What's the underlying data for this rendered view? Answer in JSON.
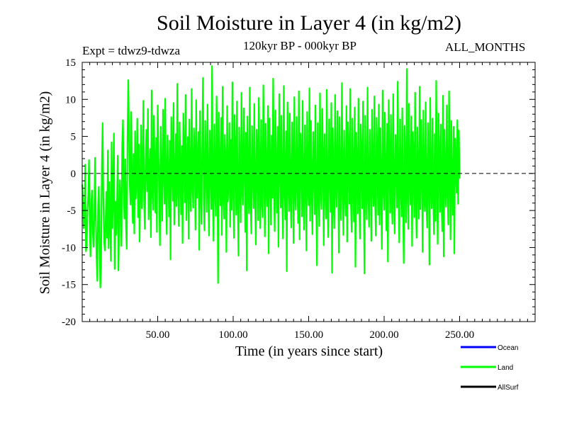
{
  "chart_data": {
    "type": "line",
    "title": "Soil Moisture in Layer 4 (in kg/m2)",
    "subtitle_left": "Expt = tdwz9-tdwza",
    "subtitle_center": "120kyr BP - 000kyr BP",
    "subtitle_right": "ALL_MONTHS",
    "xlabel": "Time (in years since start)",
    "ylabel": "Soil Moisture in Layer 4 (in kg/m2)",
    "xlim": [
      0,
      300
    ],
    "ylim": [
      -20,
      15
    ],
    "x_ticks": [
      50,
      100,
      150,
      200,
      250
    ],
    "x_tick_labels": [
      "50.00",
      "100.00",
      "150.00",
      "200.00",
      "250.00"
    ],
    "y_ticks": [
      -20,
      -15,
      -10,
      -5,
      0,
      5,
      10,
      15
    ],
    "y_tick_labels": [
      "-20",
      "-15",
      "-10",
      "-5",
      "0",
      "5",
      "10",
      "15"
    ],
    "zero_line": "dashed",
    "legend_position": "bottom-right",
    "legend": [
      {
        "name": "Ocean",
        "color": "#0000ff"
      },
      {
        "name": "Land",
        "color": "#00ff00"
      },
      {
        "name": "AllSurf",
        "color": "#000000"
      }
    ],
    "series": [
      {
        "name": "Land",
        "color": "#00ff00",
        "x_start": 0,
        "x_step": 0.5,
        "values": [
          -1.5,
          -3.2,
          -7.4,
          -5.9,
          1.2,
          -10.5,
          -9.6,
          -4.8,
          -3.1,
          1.8,
          -7.8,
          -11.2,
          -4.1,
          -2.3,
          -7.8,
          -9.9,
          -6.4,
          2.1,
          -5.6,
          -11.3,
          -14.5,
          -4.3,
          -1.8,
          -8.9,
          -15.4,
          -12.6,
          0.6,
          6.8,
          -3.2,
          -9.1,
          -10.4,
          -6.9,
          -2.5,
          -8.7,
          3.1,
          -10.1,
          -1.2,
          -6.3,
          -11.8,
          4.2,
          -7.4,
          -2.1,
          5.4,
          -12.9,
          -3.8,
          -8.3,
          -5.2,
          2.4,
          -13.1,
          -6.6,
          -0.9,
          -4.5,
          -9.8,
          3.6,
          7.2,
          -2.8,
          -6.1,
          1.9,
          -7.3,
          -10.2,
          4.6,
          12.6,
          6.1,
          -1.5,
          -4.2,
          8.3,
          -2.9,
          -6.7,
          2.6,
          -8.1,
          5.7,
          -3.4,
          -0.8,
          7.4,
          -5.9,
          3.9,
          -9.2,
          -2.3,
          6.5,
          -4.7,
          -1.1,
          9.8,
          -3.6,
          -7.5,
          2.2,
          5.9,
          -2.4,
          8.7,
          -6.2,
          -0.5,
          3.3,
          -8.6,
          11.2,
          -1.9,
          -4.9,
          7.8,
          0.9,
          -5.3,
          4.8,
          -7.9,
          9.2,
          2.8,
          -3.1,
          -9.7,
          6.3,
          -1.2,
          -6.4,
          8.6,
          1.4,
          -4.1,
          10.1,
          -2.6,
          -8.2,
          5.1,
          -0.4,
          -5.8,
          4.4,
          -11.6,
          7.6,
          2.1,
          -3.7,
          9.5,
          -6.9,
          -1.7,
          5.3,
          -4.4,
          12.1,
          -2.2,
          -7.1,
          6.9,
          0.3,
          -5.5,
          3.7,
          -9.4,
          8.1,
          1.6,
          -3.9,
          10.6,
          -6.3,
          -0.7,
          4.9,
          -8.8,
          7.3,
          -2.5,
          -5.1,
          11.4,
          -1.4,
          -4.6,
          6.1,
          2.5,
          -7.6,
          9.9,
          -3.3,
          -0.2,
          5.6,
          -10.3,
          8.4,
          -1.8,
          -6.8,
          4.1,
          12.9,
          -3.5,
          -7.7,
          7.1,
          0.8,
          -5.2,
          9.3,
          -2.1,
          -8.4,
          5.8,
          1.9,
          -4.8,
          14.5,
          -2.7,
          -9.1,
          6.6,
          -1.3,
          -5.7,
          10.4,
          3.2,
          -14.8,
          8.2,
          -0.6,
          -4.3,
          7.5,
          -8.3,
          11.7,
          -2.9,
          -6.1,
          5.2,
          1.1,
          -10.6,
          9.1,
          -3.8,
          -0.9,
          6.8,
          -7.2,
          4.5,
          -4.9,
          12.3,
          -1.6,
          -8.7,
          7.9,
          2.4,
          -5.6,
          9.7,
          -3.2,
          -11.1,
          6.2,
          -0.3,
          -6.6,
          10.9,
          -2.4,
          -4.2,
          8.8,
          1.7,
          -7.9,
          5.5,
          -13.1,
          7.7,
          -1.9,
          -5.4,
          11.6,
          -3.6,
          -8.1,
          6.4,
          0.6,
          -4.7,
          9.4,
          -2.8,
          -9.6,
          5.9,
          2.9,
          -6.3,
          10.2,
          -1.1,
          -7.4,
          7.2,
          -3.9,
          -5.9,
          11.9,
          0.4,
          -8.5,
          6.7,
          -2.2,
          -4.4,
          9.1,
          -10.8,
          7.4,
          1.2,
          -6.9,
          5.1,
          -3.3,
          12.8,
          -1.5,
          -7.8,
          8.5,
          -0.8,
          -5.3,
          6.3,
          -9.9,
          10.7,
          2.3,
          -4.6,
          7.8,
          -2.7,
          -8.8,
          11.8,
          -1.2,
          -6.2,
          5.7,
          -13.2,
          9.6,
          0.2,
          -5.1,
          8.1,
          -3.4,
          -7.3,
          6.9,
          1.8,
          -9.4,
          10.3,
          -2.6,
          -4.9,
          7.6,
          -0.9,
          -6.7,
          11.1,
          -8.9,
          5.4,
          2.7,
          -5.8,
          9.8,
          -3.1,
          -7.6,
          6.5,
          0.7,
          -10.4,
          8.3,
          -1.7,
          -4.3,
          11.5,
          -6.4,
          7.1,
          -2.3,
          -8.2,
          5.6,
          1.3,
          -5.5,
          9.2,
          -3.7,
          -12.4,
          6.8,
          -0.5,
          -7.1,
          10.8,
          -2.1,
          -4.8,
          8.7,
          2.1,
          -9.7,
          5.3,
          -1.4,
          -6.1,
          11.3,
          -3.5,
          -8.6,
          7.3,
          0.9,
          -5.2,
          9.5,
          -13.4,
          6.1,
          -2.8,
          -7.4,
          10.6,
          -1.8,
          -4.5,
          8.4,
          1.5,
          -10.7,
          7.6,
          -3.3,
          -6.3,
          12.2,
          -0.7,
          -8.3,
          5.8,
          -2.4,
          -5.7,
          9.1,
          -9.2,
          6.9,
          2.6,
          -4.1,
          11.4,
          -3.8,
          -7.9,
          7.4,
          -1.1,
          -6.5,
          8.9,
          -12.6,
          5.5,
          0.3,
          -5.4,
          10.1,
          -2.9,
          -8.8,
          6.6,
          1.9,
          -4.7,
          9.7,
          -3.6,
          -13.5,
          7.8,
          -0.8,
          -6.2,
          11.6,
          -2.5,
          -7.2,
          5.9,
          0.5,
          -9.1,
          8.6,
          -1.6,
          -4.4,
          10.4,
          -3.2,
          -8.4,
          7.5,
          2.2,
          -5.6,
          9.3,
          -6.9,
          6.1,
          -2.2,
          -10.2,
          11.2,
          -1.3,
          -4.9,
          8.2,
          -0.4,
          -7.7,
          6.7,
          -11.9,
          9.9,
          1.4,
          -5.3,
          7.9,
          -3.7,
          -6.8,
          10.7,
          -2.6,
          -8.1,
          5.2,
          2.8,
          -4.6,
          12.4,
          -1.9,
          -9.3,
          7.3,
          -0.6,
          -5.8,
          8.8,
          -3.4,
          -12.1,
          6.4,
          1.1,
          -6.6,
          14.1,
          -2.3,
          -7.5,
          9.4,
          -0.9,
          -4.2,
          7.7,
          -9.8,
          5.6,
          2.4,
          -5.9,
          10.9,
          -3.1,
          -8.7,
          6.2,
          -1.5,
          -6.1,
          11.7,
          -4.8,
          7.2,
          0.7,
          -10.6,
          8.5,
          -2.7,
          -5.1,
          9.6,
          -3.9,
          -7.3,
          6.8,
          1.6,
          -12.3,
          10.2,
          -1.4,
          -4.7,
          7.4,
          -2.9,
          -8.2,
          5.3,
          -6.4,
          12.5,
          -0.8,
          -9.5,
          8.1,
          2.3,
          -5.2,
          6.6,
          -3.5,
          -7.8,
          10.5,
          -11.2,
          5.9,
          -1.1,
          -4.5,
          9.2,
          -2.4,
          -6.9,
          11.1,
          0.6,
          -8.9,
          7.1,
          -3.2,
          -5.6,
          6.3,
          -10.8,
          4.7,
          1.8,
          -2.6,
          7.2,
          -4.1,
          5.8,
          -0.7
        ]
      }
    ]
  }
}
